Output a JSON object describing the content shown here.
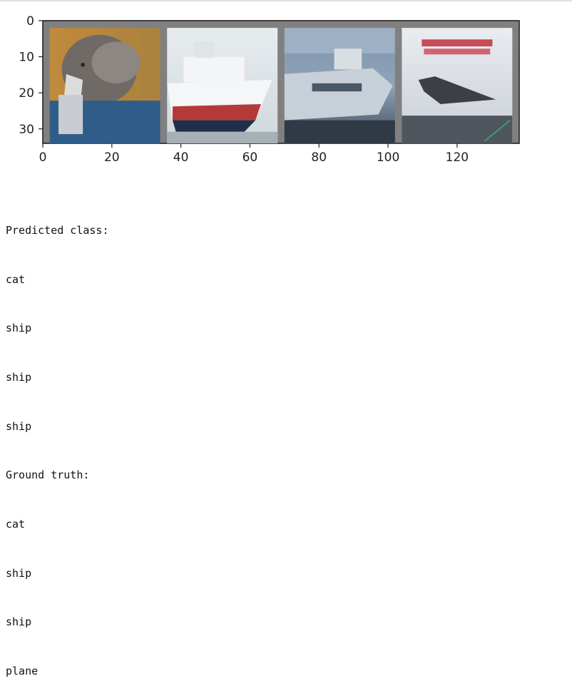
{
  "chart_data": {
    "type": "image",
    "xlim": [
      0,
      138
    ],
    "ylim": [
      34,
      0
    ],
    "x_ticks": [
      0,
      20,
      40,
      60,
      80,
      100,
      120
    ],
    "y_ticks": [
      0,
      10,
      20,
      30
    ],
    "tiles": [
      {
        "subject": "cat",
        "x_range": [
          2,
          34
        ],
        "y_range": [
          2,
          34
        ]
      },
      {
        "subject": "ship",
        "x_range": [
          36,
          68
        ],
        "y_range": [
          2,
          34
        ]
      },
      {
        "subject": "ship",
        "x_range": [
          70,
          102
        ],
        "y_range": [
          2,
          34
        ]
      },
      {
        "subject": "plane",
        "x_range": [
          104,
          136
        ],
        "y_range": [
          2,
          34
        ]
      }
    ],
    "colors": {
      "grid_border": "#808080"
    }
  },
  "output": {
    "predicted_header": "Predicted class:",
    "predicted": [
      "cat",
      "ship",
      "ship",
      "ship"
    ],
    "truth_header": "Ground truth:",
    "truth": [
      "cat",
      "ship",
      "ship",
      "plane"
    ]
  }
}
